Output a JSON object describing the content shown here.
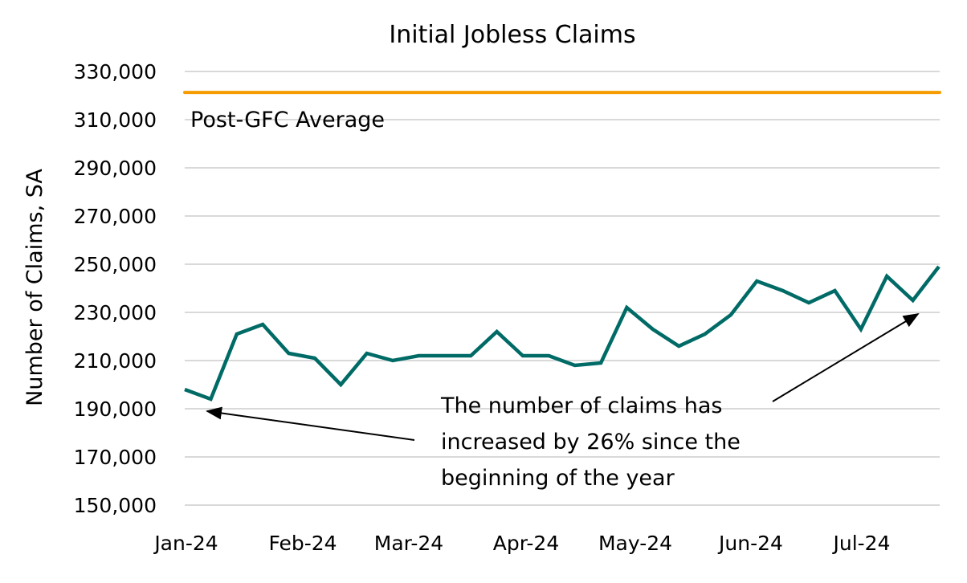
{
  "chart_data": {
    "type": "line",
    "title": "Initial Jobless Claims",
    "xlabel": "",
    "ylabel": "Number of Claims, SA",
    "ylim": [
      150000,
      330000
    ],
    "yticks": [
      330000,
      310000,
      290000,
      270000,
      250000,
      230000,
      210000,
      190000,
      170000,
      150000
    ],
    "ytick_labels": [
      "330,000",
      "310,000",
      "290,000",
      "270,000",
      "250,000",
      "230,000",
      "210,000",
      "190,000",
      "170,000",
      "150,000"
    ],
    "xtick_labels": [
      "Jan-24",
      "Feb-24",
      "Mar-24",
      "Apr-24",
      "May-24",
      "Jun-24",
      "Jul-24"
    ],
    "grid": true,
    "series": [
      {
        "name": "Initial Jobless Claims",
        "color": "#006b66",
        "values": [
          198000,
          194000,
          221000,
          225000,
          213000,
          211000,
          200000,
          213000,
          210000,
          212000,
          212000,
          212000,
          222000,
          212000,
          212000,
          208000,
          209000,
          232000,
          223000,
          216000,
          221000,
          229000,
          243000,
          239000,
          234000,
          239000,
          223000,
          245000,
          235000,
          249000
        ]
      },
      {
        "name": "Post-GFC Average",
        "color": "#f59c00",
        "values": [
          321300
        ]
      }
    ],
    "annotations": [
      {
        "text": "Post-GFC Average"
      },
      {
        "text": "The number of claims has increased by 26% since the beginning of the year"
      }
    ]
  },
  "labels": {
    "title": "Initial Jobless Claims",
    "ylabel": "Number of Claims, SA",
    "avg_label": "Post-GFC Average",
    "annotation_lines": [
      "The number of claims has",
      "increased by 26% since the",
      "beginning of the year"
    ]
  },
  "colors": {
    "series": "#006b66",
    "average": "#f59c00",
    "grid": "#d9d9d9",
    "arrow": "#000000"
  }
}
